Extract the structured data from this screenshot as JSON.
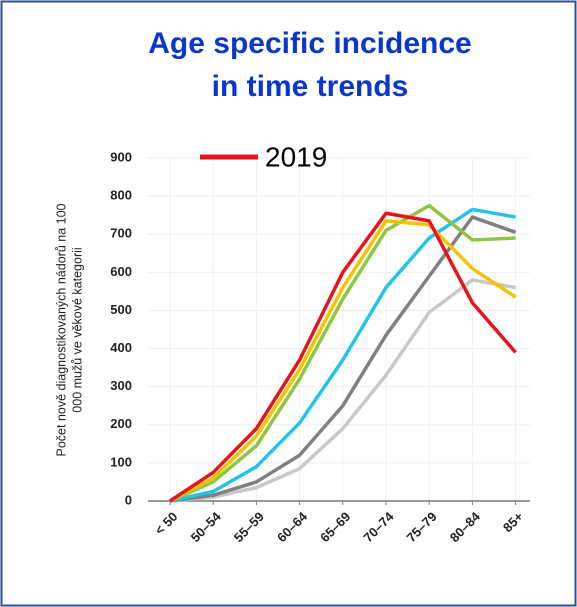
{
  "chart_data": {
    "type": "line",
    "title": [
      "Age specific incidence",
      "in time trends"
    ],
    "y_label": [
      "Počet nově diagnostikovaných nádorů na 100",
      "000 mužů ve věkové kategorii"
    ],
    "categories": [
      "< 50",
      "50–54",
      "55–59",
      "60–64",
      "65–69",
      "70–74",
      "75–79",
      "80–84",
      "85+"
    ],
    "series": [
      {
        "name": "2019",
        "color": "#e8141c",
        "values": [
          0,
          75,
          190,
          370,
          600,
          755,
          735,
          520,
          390
        ]
      },
      {
        "color": "#f5c400",
        "values": [
          0,
          60,
          170,
          345,
          560,
          735,
          725,
          610,
          535
        ]
      },
      {
        "color": "#8dc63f",
        "values": [
          0,
          50,
          145,
          320,
          530,
          710,
          775,
          685,
          690
        ]
      },
      {
        "color": "#22c4e8",
        "values": [
          0,
          25,
          90,
          205,
          370,
          560,
          690,
          765,
          745
        ]
      },
      {
        "color": "#808080",
        "values": [
          0,
          15,
          50,
          120,
          250,
          435,
          590,
          745,
          705
        ]
      },
      {
        "color": "#c8c8c8",
        "values": [
          0,
          10,
          35,
          85,
          190,
          330,
          495,
          580,
          560
        ]
      }
    ],
    "ylim": [
      0,
      900
    ],
    "yticks": [
      0,
      100,
      200,
      300,
      400,
      500,
      600,
      700,
      800,
      900
    ],
    "grid": true
  }
}
